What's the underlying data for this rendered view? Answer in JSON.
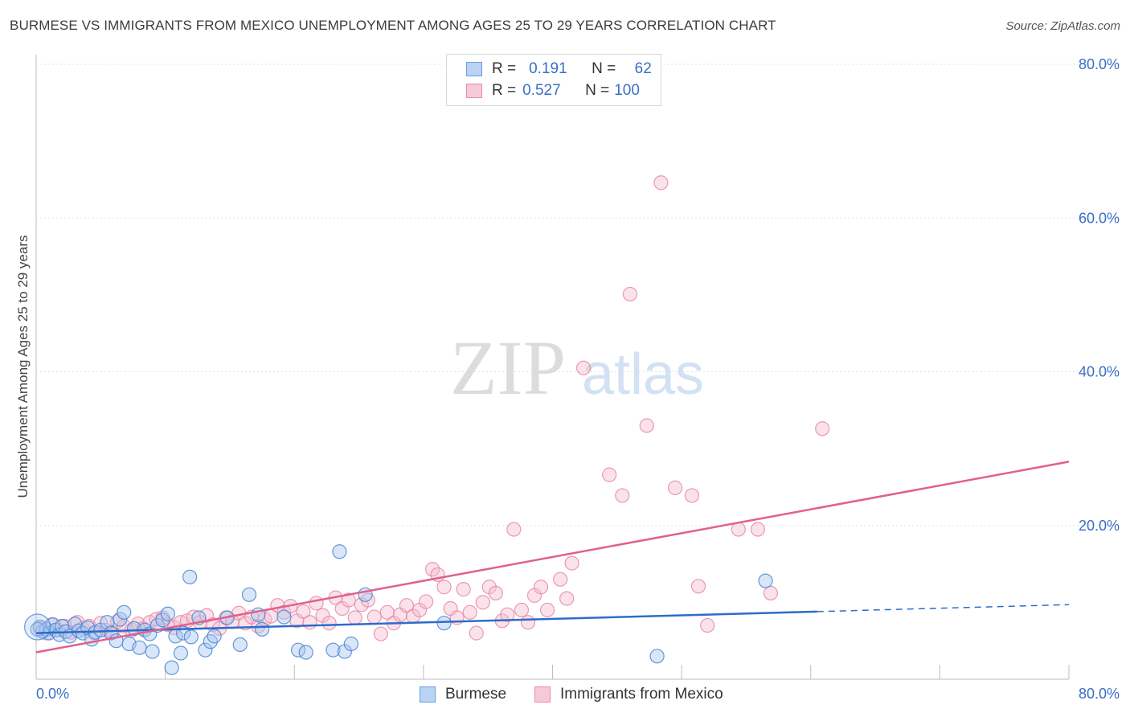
{
  "title": "BURMESE VS IMMIGRANTS FROM MEXICO UNEMPLOYMENT AMONG AGES 25 TO 29 YEARS CORRELATION CHART",
  "source": "Source: ZipAtlas.com",
  "colors": {
    "blue": "#4a86d4",
    "blue_fill": "#a9c8f0",
    "blue_line": "#2e6cc9",
    "pink": "#e987a7",
    "pink_fill": "#f5bfd0",
    "pink_line": "#e0608e",
    "tick_text": "#3a6fc4",
    "grid": "#e2e2e2"
  },
  "legend": {
    "r_label": "R =",
    "n_label": "N =",
    "rows": [
      {
        "series": "Burmese",
        "r": "0.191",
        "n": "62"
      },
      {
        "series": "Immigrants from Mexico",
        "r": "0.527",
        "n": "100"
      }
    ]
  },
  "watermark": {
    "zip": "ZIP",
    "atlas": "atlas"
  },
  "chart_data": {
    "type": "scatter",
    "ylabel": "Unemployment Among Ages 25 to 29 years",
    "xlabel": "",
    "xlim": [
      0,
      80
    ],
    "ylim": [
      0,
      80
    ],
    "x_tick_labels": [
      "0.0%",
      "80.0%"
    ],
    "y_tick_labels": [
      "20.0%",
      "40.0%",
      "60.0%",
      "80.0%"
    ],
    "y_ticks": [
      20,
      40,
      60,
      80
    ],
    "series": [
      {
        "name": "Burmese",
        "color": "blue",
        "trend": {
          "x0": 0,
          "y0": 6.0,
          "x1": 60.5,
          "y1": 8.8,
          "dash_x1": 80,
          "dash_y1": 9.7
        },
        "points": [
          [
            0.3,
            6.8
          ],
          [
            0.5,
            6.2
          ],
          [
            0.8,
            6.5
          ],
          [
            1.0,
            6.0
          ],
          [
            1.3,
            7.1
          ],
          [
            1.5,
            6.4
          ],
          [
            1.8,
            5.8
          ],
          [
            2.0,
            6.9
          ],
          [
            2.3,
            6.2
          ],
          [
            2.6,
            5.6
          ],
          [
            3.0,
            7.2
          ],
          [
            3.3,
            6.3
          ],
          [
            3.6,
            6.0
          ],
          [
            4.0,
            6.7
          ],
          [
            4.3,
            5.2
          ],
          [
            4.6,
            6.1
          ],
          [
            5.0,
            6.4
          ],
          [
            5.5,
            7.4
          ],
          [
            5.8,
            6.0
          ],
          [
            6.2,
            5.0
          ],
          [
            6.5,
            7.8
          ],
          [
            6.8,
            8.7
          ],
          [
            7.2,
            4.6
          ],
          [
            7.6,
            6.6
          ],
          [
            8.0,
            4.1
          ],
          [
            8.4,
            6.4
          ],
          [
            8.8,
            5.9
          ],
          [
            9.0,
            3.6
          ],
          [
            9.4,
            7.0
          ],
          [
            9.8,
            7.7
          ],
          [
            10.2,
            8.5
          ],
          [
            10.5,
            1.5
          ],
          [
            10.8,
            5.6
          ],
          [
            11.2,
            3.4
          ],
          [
            11.4,
            6.0
          ],
          [
            11.9,
            13.3
          ],
          [
            12.0,
            5.5
          ],
          [
            12.6,
            8.0
          ],
          [
            13.1,
            3.8
          ],
          [
            13.5,
            4.9
          ],
          [
            13.8,
            5.6
          ],
          [
            14.8,
            8.0
          ],
          [
            15.8,
            4.5
          ],
          [
            16.5,
            11.0
          ],
          [
            17.2,
            8.4
          ],
          [
            17.5,
            6.5
          ],
          [
            19.2,
            8.1
          ],
          [
            20.3,
            3.8
          ],
          [
            20.9,
            3.5
          ],
          [
            23.0,
            3.8
          ],
          [
            23.5,
            16.6
          ],
          [
            23.9,
            3.6
          ],
          [
            24.4,
            4.6
          ],
          [
            25.5,
            11.0
          ],
          [
            31.6,
            7.3
          ],
          [
            48.1,
            3.0
          ],
          [
            56.5,
            12.8
          ],
          [
            0.1,
            6.5
          ]
        ]
      },
      {
        "name": "Immigrants from Mexico",
        "color": "pink",
        "trend": {
          "x0": 0,
          "y0": 3.5,
          "x1": 80,
          "y1": 28.3
        },
        "points": [
          [
            0.3,
            6.6
          ],
          [
            0.8,
            6.0
          ],
          [
            1.2,
            7.1
          ],
          [
            1.7,
            6.4
          ],
          [
            2.2,
            6.9
          ],
          [
            2.7,
            6.1
          ],
          [
            3.2,
            7.4
          ],
          [
            3.6,
            6.6
          ],
          [
            4.1,
            6.9
          ],
          [
            4.5,
            6.0
          ],
          [
            5.0,
            7.3
          ],
          [
            5.4,
            6.4
          ],
          [
            5.9,
            6.1
          ],
          [
            6.3,
            7.5
          ],
          [
            6.8,
            6.9
          ],
          [
            7.4,
            6.4
          ],
          [
            7.9,
            7.2
          ],
          [
            8.3,
            6.6
          ],
          [
            8.8,
            7.4
          ],
          [
            9.3,
            7.8
          ],
          [
            9.8,
            8.0
          ],
          [
            10.2,
            7.1
          ],
          [
            10.7,
            6.7
          ],
          [
            11.2,
            7.4
          ],
          [
            11.7,
            7.6
          ],
          [
            12.2,
            8.1
          ],
          [
            12.7,
            7.4
          ],
          [
            13.2,
            8.3
          ],
          [
            13.7,
            7.1
          ],
          [
            14.2,
            6.6
          ],
          [
            14.7,
            8.0
          ],
          [
            15.2,
            7.5
          ],
          [
            15.7,
            8.6
          ],
          [
            16.2,
            7.3
          ],
          [
            16.7,
            8.1
          ],
          [
            17.2,
            6.9
          ],
          [
            17.7,
            7.8
          ],
          [
            18.2,
            8.2
          ],
          [
            18.7,
            9.6
          ],
          [
            19.2,
            8.7
          ],
          [
            19.7,
            9.5
          ],
          [
            20.2,
            7.6
          ],
          [
            20.7,
            8.8
          ],
          [
            21.2,
            7.4
          ],
          [
            21.7,
            9.9
          ],
          [
            22.2,
            8.3
          ],
          [
            22.7,
            7.3
          ],
          [
            23.2,
            10.6
          ],
          [
            23.7,
            9.2
          ],
          [
            24.2,
            10.3
          ],
          [
            24.7,
            8.0
          ],
          [
            25.2,
            9.7
          ],
          [
            25.7,
            10.3
          ],
          [
            26.2,
            8.1
          ],
          [
            26.7,
            5.9
          ],
          [
            27.2,
            8.7
          ],
          [
            27.7,
            7.3
          ],
          [
            28.2,
            8.4
          ],
          [
            28.7,
            9.6
          ],
          [
            29.2,
            8.2
          ],
          [
            29.7,
            9.0
          ],
          [
            30.2,
            10.1
          ],
          [
            30.7,
            14.3
          ],
          [
            31.1,
            13.6
          ],
          [
            31.6,
            12.0
          ],
          [
            32.1,
            9.2
          ],
          [
            32.6,
            8.0
          ],
          [
            33.1,
            11.7
          ],
          [
            33.6,
            8.7
          ],
          [
            34.1,
            6.0
          ],
          [
            34.6,
            10.0
          ],
          [
            35.1,
            12.0
          ],
          [
            35.6,
            11.2
          ],
          [
            36.1,
            7.6
          ],
          [
            36.5,
            8.4
          ],
          [
            37.0,
            19.5
          ],
          [
            37.6,
            9.0
          ],
          [
            38.1,
            7.4
          ],
          [
            38.6,
            10.9
          ],
          [
            39.1,
            12.0
          ],
          [
            39.6,
            9.0
          ],
          [
            40.6,
            13.0
          ],
          [
            41.1,
            10.5
          ],
          [
            41.5,
            15.1
          ],
          [
            42.4,
            40.5
          ],
          [
            44.4,
            26.6
          ],
          [
            45.4,
            23.9
          ],
          [
            46.0,
            50.1
          ],
          [
            47.3,
            33.0
          ],
          [
            48.4,
            64.6
          ],
          [
            49.5,
            24.9
          ],
          [
            50.8,
            23.9
          ],
          [
            51.3,
            12.1
          ],
          [
            52.0,
            7.0
          ],
          [
            54.4,
            19.5
          ],
          [
            55.9,
            19.5
          ],
          [
            56.9,
            11.2
          ],
          [
            60.9,
            32.6
          ]
        ]
      }
    ]
  }
}
